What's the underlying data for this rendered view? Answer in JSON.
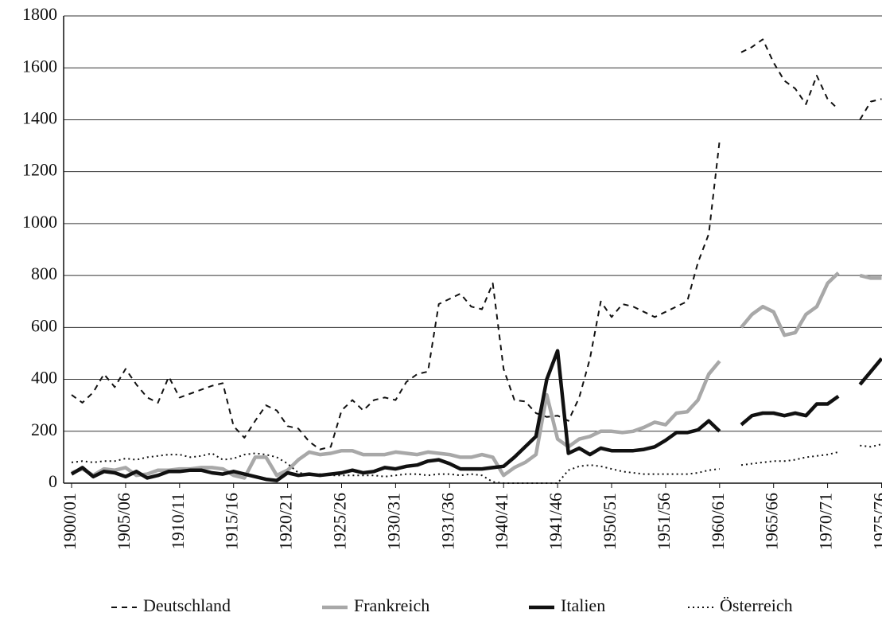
{
  "chart_data": {
    "type": "line",
    "categories": [
      "1900/01",
      null,
      null,
      null,
      null,
      "1905/06",
      null,
      null,
      null,
      null,
      "1910/11",
      null,
      null,
      null,
      null,
      "1915/16",
      null,
      null,
      null,
      null,
      "1920/21",
      null,
      null,
      null,
      null,
      "1925/26",
      null,
      null,
      null,
      null,
      "1930/31",
      null,
      null,
      null,
      null,
      "1931/36",
      null,
      null,
      null,
      null,
      "1940/41",
      null,
      null,
      null,
      null,
      "1941/46",
      null,
      null,
      null,
      null,
      "1950/51",
      null,
      null,
      null,
      null,
      "1951/56",
      null,
      null,
      null,
      null,
      "1960/61",
      null,
      null,
      null,
      null,
      "1965/66",
      null,
      null,
      null,
      null,
      "1970/71",
      null,
      null,
      null,
      null,
      "1975/76"
    ],
    "series": [
      {
        "name": "Deutschland",
        "color": "#111111",
        "style": "dashed",
        "values": [
          340,
          310,
          350,
          420,
          370,
          440,
          380,
          330,
          310,
          410,
          330,
          345,
          360,
          375,
          385,
          220,
          175,
          240,
          300,
          280,
          220,
          210,
          160,
          130,
          140,
          280,
          320,
          280,
          320,
          330,
          320,
          390,
          420,
          430,
          690,
          710,
          730,
          680,
          670,
          770,
          440,
          320,
          315,
          270,
          255,
          260,
          240,
          330,
          480,
          700,
          640,
          690,
          680,
          660,
          640,
          660,
          680,
          700,
          850,
          960,
          1320,
          null,
          1660,
          1680,
          1710,
          1620,
          1550,
          1520,
          1460,
          1570,
          1480,
          1440,
          null,
          1400,
          1470,
          1480
        ]
      },
      {
        "name": "Frankreich",
        "color": "#a8a8a8",
        "style": "thick",
        "values": [
          40,
          55,
          30,
          55,
          50,
          60,
          30,
          35,
          50,
          50,
          55,
          55,
          60,
          60,
          55,
          30,
          20,
          100,
          100,
          30,
          50,
          90,
          120,
          110,
          115,
          125,
          125,
          110,
          110,
          110,
          120,
          115,
          110,
          120,
          115,
          110,
          100,
          100,
          110,
          100,
          30,
          60,
          80,
          110,
          340,
          170,
          140,
          170,
          180,
          200,
          200,
          195,
          200,
          215,
          235,
          225,
          270,
          275,
          320,
          420,
          470,
          null,
          600,
          650,
          680,
          660,
          570,
          580,
          650,
          680,
          770,
          810,
          null,
          800,
          790,
          790
        ]
      },
      {
        "name": "Italien",
        "color": "#111111",
        "style": "thick",
        "values": [
          35,
          60,
          25,
          45,
          40,
          25,
          45,
          20,
          30,
          45,
          45,
          50,
          50,
          40,
          35,
          45,
          35,
          25,
          15,
          10,
          40,
          30,
          35,
          30,
          35,
          40,
          50,
          40,
          45,
          60,
          55,
          65,
          70,
          85,
          90,
          75,
          55,
          55,
          55,
          60,
          65,
          100,
          140,
          180,
          400,
          510,
          115,
          135,
          110,
          135,
          125,
          125,
          125,
          130,
          140,
          165,
          195,
          195,
          205,
          240,
          200,
          null,
          225,
          260,
          270,
          270,
          260,
          270,
          260,
          305,
          305,
          335,
          null,
          380,
          430,
          480
        ]
      },
      {
        "name": "Österreich",
        "color": "#111111",
        "style": "dotted",
        "values": [
          80,
          85,
          80,
          85,
          85,
          95,
          90,
          100,
          105,
          110,
          110,
          100,
          105,
          115,
          90,
          95,
          110,
          115,
          110,
          100,
          75,
          40,
          35,
          35,
          30,
          30,
          30,
          30,
          30,
          25,
          30,
          35,
          35,
          30,
          35,
          35,
          30,
          35,
          30,
          5,
          0,
          0,
          0,
          0,
          0,
          0,
          50,
          65,
          70,
          65,
          55,
          45,
          40,
          35,
          35,
          35,
          35,
          35,
          40,
          50,
          55,
          null,
          70,
          75,
          80,
          85,
          85,
          90,
          100,
          105,
          110,
          120,
          null,
          145,
          140,
          150
        ]
      }
    ],
    "ylim": [
      0,
      1800
    ],
    "yticks": [
      0,
      200,
      400,
      600,
      800,
      1000,
      1200,
      1400,
      1600,
      1800
    ],
    "grid": true,
    "legend": "bottom"
  }
}
